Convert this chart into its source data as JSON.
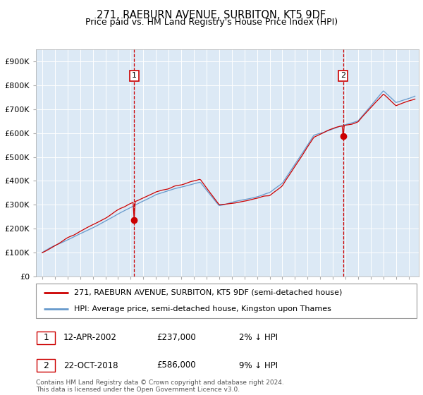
{
  "title": "271, RAEBURN AVENUE, SURBITON, KT5 9DF",
  "subtitle": "Price paid vs. HM Land Registry's House Price Index (HPI)",
  "ylim": [
    0,
    950000
  ],
  "yticks": [
    0,
    100000,
    200000,
    300000,
    400000,
    500000,
    600000,
    700000,
    800000,
    900000
  ],
  "ytick_labels": [
    "£0",
    "£100K",
    "£200K",
    "£300K",
    "£400K",
    "£500K",
    "£600K",
    "£700K",
    "£800K",
    "£900K"
  ],
  "bg_color": "#dce9f5",
  "grid_color": "#ffffff",
  "hpi_color": "#6699cc",
  "price_color": "#cc0000",
  "sale1_date": 2002.28,
  "sale1_price": 237000,
  "sale2_date": 2018.81,
  "sale2_price": 586000,
  "legend_line1": "271, RAEBURN AVENUE, SURBITON, KT5 9DF (semi-detached house)",
  "legend_line2": "HPI: Average price, semi-detached house, Kingston upon Thames",
  "note1_date": "12-APR-2002",
  "note1_price": "£237,000",
  "note1_hpi": "2% ↓ HPI",
  "note2_date": "22-OCT-2018",
  "note2_price": "£586,000",
  "note2_hpi": "9% ↓ HPI",
  "footer": "Contains HM Land Registry data © Crown copyright and database right 2024.\nThis data is licensed under the Open Government Licence v3.0."
}
